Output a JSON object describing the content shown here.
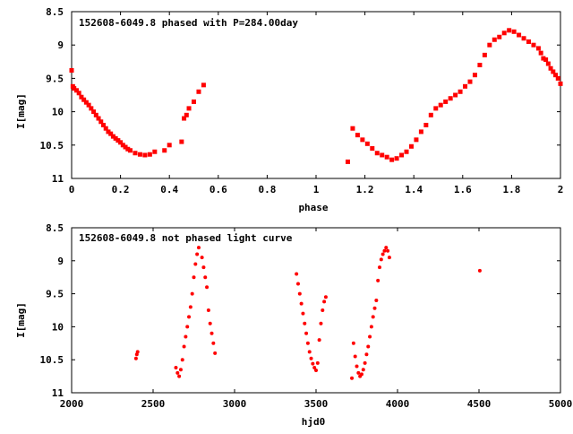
{
  "chart_data": [
    {
      "type": "scatter",
      "title": "152608-6049.8 phased with P=284.00day",
      "xlabel": "phase",
      "ylabel": "I[mag]",
      "xlim": [
        0,
        2
      ],
      "ylim": [
        11,
        8.5
      ],
      "y_inverted": true,
      "xticks": [
        "0",
        "0.2",
        "0.4",
        "0.6",
        "0.8",
        "1",
        "1.2",
        "1.4",
        "1.6",
        "1.8",
        "2"
      ],
      "yticks": [
        "8.5",
        "9",
        "9.5",
        "10",
        "10.5",
        "11"
      ],
      "grid": false,
      "marker_color": "#ff0000",
      "series": [
        {
          "x": [
            0.0,
            0.005,
            0.01,
            0.02,
            0.03,
            0.04,
            0.05,
            0.06,
            0.07,
            0.08,
            0.09,
            0.1,
            0.11,
            0.12,
            0.13,
            0.14,
            0.15,
            0.16,
            0.17,
            0.18,
            0.19,
            0.2,
            0.21,
            0.22,
            0.23,
            0.24,
            0.26,
            0.28,
            0.3,
            0.32,
            0.34,
            0.38,
            0.4,
            0.45,
            0.46,
            0.47,
            0.48,
            0.5,
            0.52,
            0.54,
            1.13,
            1.15,
            1.17,
            1.19,
            1.21,
            1.23,
            1.25,
            1.27,
            1.29,
            1.31,
            1.33,
            1.35,
            1.37,
            1.39,
            1.41,
            1.43,
            1.45,
            1.47,
            1.49,
            1.51,
            1.53,
            1.55,
            1.57,
            1.59,
            1.61,
            1.63,
            1.65,
            1.67,
            1.69,
            1.71,
            1.73,
            1.75,
            1.77,
            1.79,
            1.81,
            1.83,
            1.85,
            1.87,
            1.89,
            1.91,
            1.92,
            1.93,
            1.94,
            1.95,
            1.96,
            1.97,
            1.98,
            1.99,
            2.0
          ],
          "y": [
            9.38,
            9.62,
            9.65,
            9.68,
            9.72,
            9.78,
            9.82,
            9.86,
            9.9,
            9.95,
            10.0,
            10.05,
            10.1,
            10.15,
            10.2,
            10.25,
            10.3,
            10.33,
            10.37,
            10.4,
            10.43,
            10.46,
            10.5,
            10.53,
            10.56,
            10.58,
            10.62,
            10.64,
            10.65,
            10.64,
            10.6,
            10.58,
            10.5,
            10.45,
            10.1,
            10.05,
            9.95,
            9.85,
            9.7,
            9.6,
            10.75,
            10.25,
            10.35,
            10.42,
            10.48,
            10.55,
            10.62,
            10.65,
            10.68,
            10.72,
            10.7,
            10.65,
            10.6,
            10.52,
            10.42,
            10.3,
            10.2,
            10.05,
            9.95,
            9.9,
            9.85,
            9.8,
            9.75,
            9.7,
            9.62,
            9.55,
            9.45,
            9.3,
            9.15,
            9.0,
            8.92,
            8.88,
            8.82,
            8.78,
            8.8,
            8.85,
            8.9,
            8.95,
            9.0,
            9.05,
            9.12,
            9.2,
            9.22,
            9.28,
            9.35,
            9.4,
            9.45,
            9.5,
            9.58
          ]
        }
      ]
    },
    {
      "type": "scatter",
      "title": "152608-6049.8 not phased light curve",
      "xlabel": "hjd0",
      "ylabel": "I[mag]",
      "xlim": [
        2000,
        5000
      ],
      "ylim": [
        11,
        8.5
      ],
      "y_inverted": true,
      "xticks": [
        "2000",
        "2500",
        "3000",
        "3500",
        "4000",
        "4500",
        "5000"
      ],
      "yticks": [
        "8.5",
        "9",
        "9.5",
        "10",
        "10.5",
        "11"
      ],
      "grid": false,
      "marker_color": "#ff0000",
      "series": [
        {
          "x": [
            2395,
            2400,
            2405,
            2640,
            2650,
            2660,
            2670,
            2680,
            2690,
            2700,
            2710,
            2720,
            2730,
            2740,
            2750,
            2760,
            2770,
            2780,
            2800,
            2810,
            2820,
            2830,
            2840,
            2850,
            2860,
            2870,
            2880,
            3380,
            3390,
            3400,
            3410,
            3420,
            3430,
            3440,
            3450,
            3460,
            3470,
            3480,
            3490,
            3500,
            3510,
            3520,
            3530,
            3540,
            3550,
            3560,
            3720,
            3730,
            3740,
            3750,
            3760,
            3770,
            3780,
            3790,
            3800,
            3810,
            3820,
            3830,
            3840,
            3850,
            3860,
            3870,
            3880,
            3890,
            3900,
            3910,
            3920,
            3930,
            3940,
            3950,
            4505
          ],
          "y": [
            10.48,
            10.42,
            10.38,
            10.62,
            10.7,
            10.75,
            10.65,
            10.5,
            10.3,
            10.15,
            10.0,
            9.85,
            9.7,
            9.5,
            9.25,
            9.05,
            8.9,
            8.8,
            8.95,
            9.1,
            9.25,
            9.4,
            9.75,
            9.95,
            10.1,
            10.25,
            10.4,
            9.2,
            9.35,
            9.5,
            9.65,
            9.8,
            9.95,
            10.1,
            10.25,
            10.38,
            10.48,
            10.56,
            10.62,
            10.66,
            10.55,
            10.2,
            9.95,
            9.75,
            9.62,
            9.55,
            10.78,
            10.25,
            10.45,
            10.6,
            10.7,
            10.75,
            10.72,
            10.65,
            10.55,
            10.42,
            10.3,
            10.15,
            10.0,
            9.85,
            9.72,
            9.6,
            9.3,
            9.1,
            8.98,
            8.9,
            8.85,
            8.8,
            8.85,
            8.95,
            9.15
          ]
        }
      ]
    }
  ]
}
